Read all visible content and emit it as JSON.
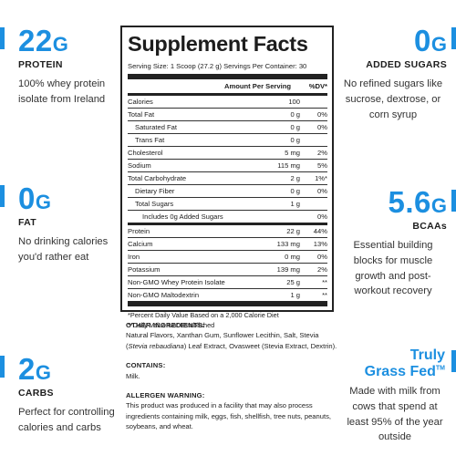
{
  "stats": {
    "protein": {
      "number": "22",
      "unit": "G",
      "label": "PROTEIN",
      "desc": "100% whey protein isolate from Ireland"
    },
    "fat": {
      "number": "0",
      "unit": "G",
      "label": "FAT",
      "desc": "No drinking calories you'd rather eat"
    },
    "carbs": {
      "number": "2",
      "unit": "G",
      "label": "CARBS",
      "desc": "Perfect for controlling calories and carbs"
    },
    "sugars": {
      "number": "0",
      "unit": "G",
      "label": "ADDED SUGARS",
      "desc": "No refined sugars like sucrose, dextrose, or corn syrup"
    },
    "bcaas": {
      "number": "5.6",
      "unit": "G",
      "label": "BCAAs",
      "desc": "Essential building blocks for muscle growth and post-workout recovery"
    },
    "grassfed": {
      "line1": "Truly",
      "line2": "Grass Fed",
      "tm": "TM",
      "desc": "Made with milk from cows that spend at least 95% of the year outside"
    }
  },
  "supplement_facts": {
    "title": "Supplement Facts",
    "serving": "Serving Size: 1 Scoop (27.2 g)   Servings Per Container: 30",
    "col_amount": "Amount Per Serving",
    "col_dv": "%DV*",
    "rows": [
      {
        "name": "Calories",
        "amount": "100",
        "dv": ""
      },
      {
        "name": "Total Fat",
        "amount": "0 g",
        "dv": "0%"
      },
      {
        "name": "Saturated Fat",
        "amount": "0 g",
        "dv": "0%"
      },
      {
        "name": "Trans Fat",
        "amount": "0 g",
        "dv": ""
      },
      {
        "name": "Cholesterol",
        "amount": "5 mg",
        "dv": "2%"
      },
      {
        "name": "Sodium",
        "amount": "115 mg",
        "dv": "5%"
      },
      {
        "name": "Total Carbohydrate",
        "amount": "2 g",
        "dv": "1%*"
      },
      {
        "name": "Dietary Fiber",
        "amount": "0 g",
        "dv": "0%"
      },
      {
        "name": "Total Sugars",
        "amount": "1 g",
        "dv": ""
      },
      {
        "name": "Includes 0g Added Sugars",
        "amount": "",
        "dv": "0%"
      },
      {
        "name": "Protein",
        "amount": "22 g",
        "dv": "44%"
      },
      {
        "name": "Calcium",
        "amount": "133 mg",
        "dv": "13%"
      },
      {
        "name": "Iron",
        "amount": "0 mg",
        "dv": "0%"
      },
      {
        "name": "Potassium",
        "amount": "139 mg",
        "dv": "2%"
      },
      {
        "name": "Non-GMO Whey Protein Isolate",
        "amount": "25 g",
        "dv": "**"
      },
      {
        "name": "Non-GMO Maltodextrin",
        "amount": "1 g",
        "dv": "**"
      }
    ],
    "footnote1": "*Percent Daily Value Based on a 2,000 Calorie Diet",
    "footnote2": "**Daily Value Not Established"
  },
  "ingredients": {
    "other_heading": "OTHER INGREDIENTS:",
    "other_text_1": "Natural Flavors, Xanthan Gum, Sunflower Lecithin, Salt, Stevia (",
    "other_text_italic": "Stevia rebaudiana",
    "other_text_2": ") Leaf Extract, Ovasweet (Stevia Extract, Dextrin).",
    "contains_heading": "CONTAINS:",
    "contains_text": "Milk.",
    "allergen_heading": "ALLERGEN WARNING:",
    "allergen_text": "This product was produced in a facility that may also process ingredients containing milk, eggs, fish, shellfish, tree nuts, peanuts, soybeans, and wheat."
  },
  "colors": {
    "accent": "#1c8fe0",
    "text": "#1d1d1d",
    "border": "#222222"
  }
}
